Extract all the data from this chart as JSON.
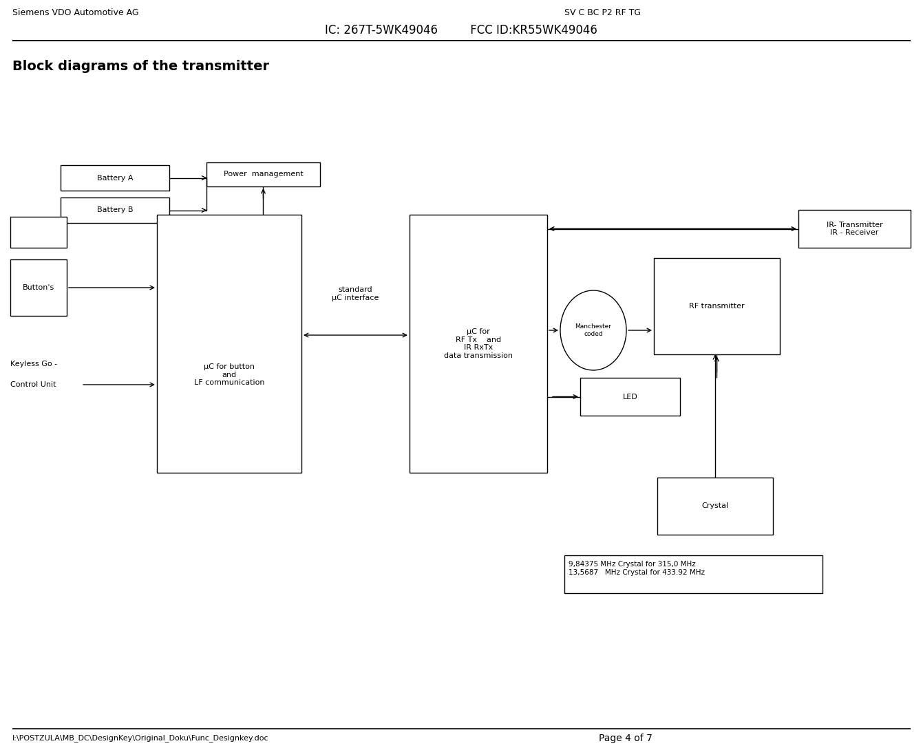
{
  "title_left": "Siemens VDO Automotive AG",
  "title_right": "SV C BC P2 RF TG",
  "header_center": "IC: 267T-5WK49046         FCC ID:KR55WK49046",
  "section_title": "Block diagrams of the transmitter",
  "footer_left": "I:\\POSTZULA\\MB_DC\\DesignKey\\Original_Doku\\Func_Designkey.doc",
  "footer_right": "Page 4 of 7",
  "bg_color": "#ffffff",
  "text_color": "#000000",
  "crystal_note": "9,84375 MHz Crystal for 315,0 MHz\n13,5687   MHz Crystal for 433.92 MHz"
}
